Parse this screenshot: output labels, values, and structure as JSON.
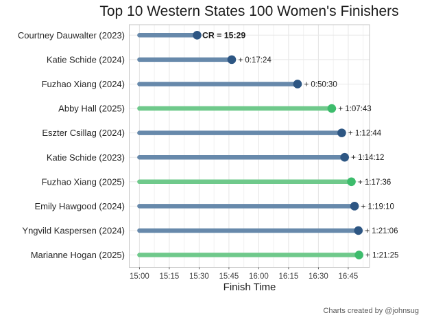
{
  "chart_data": {
    "type": "bar",
    "variant": "horizontal-lollipop",
    "title": "Top 10 Western States 100 Women's Finishers",
    "xlabel": "Finish Time",
    "ylabel": "",
    "caption": "Charts created by @johnsug",
    "x_ticks": [
      "15:00",
      "15:15",
      "15:30",
      "15:45",
      "16:00",
      "16:15",
      "16:30",
      "16:45"
    ],
    "x_axis_start": "15:00",
    "grid": "on",
    "legend": "none",
    "rows": [
      {
        "label": "Courtney Dauwalter (2023)",
        "finish_time": "15:29:00",
        "annotation": "CR = 15:29",
        "bold": true,
        "color_group": "blue"
      },
      {
        "label": "Katie Schide (2024)",
        "finish_time": "15:46:24",
        "annotation": "+ 0:17:24",
        "bold": false,
        "color_group": "blue"
      },
      {
        "label": "Fuzhao Xiang (2024)",
        "finish_time": "16:19:30",
        "annotation": "+ 0:50:30",
        "bold": false,
        "color_group": "blue"
      },
      {
        "label": "Abby Hall (2025)",
        "finish_time": "16:36:43",
        "annotation": "+ 1:07:43",
        "bold": false,
        "color_group": "green"
      },
      {
        "label": "Eszter Csillag (2024)",
        "finish_time": "16:41:44",
        "annotation": "+ 1:12:44",
        "bold": false,
        "color_group": "blue"
      },
      {
        "label": "Katie Schide (2023)",
        "finish_time": "16:43:12",
        "annotation": "+ 1:14:12",
        "bold": false,
        "color_group": "blue"
      },
      {
        "label": "Fuzhao Xiang (2025)",
        "finish_time": "16:46:36",
        "annotation": "+ 1:17:36",
        "bold": false,
        "color_group": "green"
      },
      {
        "label": "Emily Hawgood (2024)",
        "finish_time": "16:48:10",
        "annotation": "+ 1:19:10",
        "bold": false,
        "color_group": "blue"
      },
      {
        "label": "Yngvild Kaspersen (2024)",
        "finish_time": "16:50:06",
        "annotation": "+ 1:21:06",
        "bold": false,
        "color_group": "blue"
      },
      {
        "label": "Marianne Hogan (2025)",
        "finish_time": "16:50:25",
        "annotation": "+ 1:21:25",
        "bold": false,
        "color_group": "green"
      }
    ],
    "colors": {
      "blue_line": "#6789ab",
      "blue_point": "#2d5683",
      "green_line": "#6fc98b",
      "green_point": "#3dbc6c",
      "grid_major": "#e4e4e4",
      "grid_minor": "#f1f1f1",
      "grid_major_h": "#e8e8e8",
      "panel_border": "#c4c4c4",
      "tick_mark": "#4d4d4d",
      "value_label": "#1a1a1a",
      "category_label": "#262626",
      "tick_label": "#404040"
    }
  }
}
